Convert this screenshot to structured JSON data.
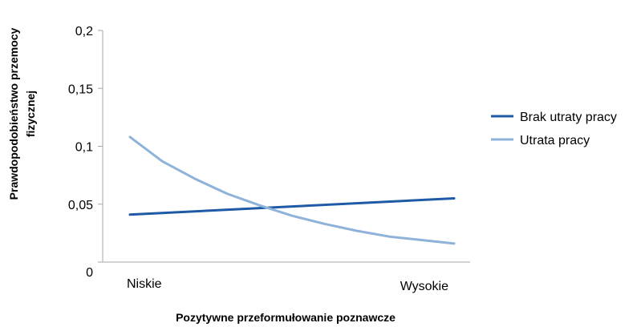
{
  "chart_data": {
    "type": "line",
    "categories": [
      "Niskie",
      "Wysokie"
    ],
    "x": [
      0,
      1
    ],
    "series": [
      {
        "name": "Brak utraty pracy",
        "color": "#1f5aa6",
        "x": [
          0,
          1
        ],
        "values": [
          0.041,
          0.055
        ]
      },
      {
        "name": "Utrata pracy",
        "color": "#8eb2d9",
        "x": [
          0,
          0.1,
          0.2,
          0.3,
          0.4,
          0.5,
          0.6,
          0.7,
          0.8,
          0.9,
          1
        ],
        "values": [
          0.108,
          0.087,
          0.072,
          0.059,
          0.049,
          0.04,
          0.033,
          0.027,
          0.022,
          0.019,
          0.016
        ]
      }
    ],
    "xlabel": "Pozytywne przeformułowanie poznawcze",
    "ylabel_lines": [
      "Prawdopodobieństwo przemocy",
      "fizycznej"
    ],
    "ylim": [
      0,
      0.2
    ],
    "yticks": [
      0,
      0.05,
      0.1,
      0.15,
      0.2
    ],
    "ytick_labels": [
      "0",
      "0,05",
      "0,1",
      "0,15",
      "0,2"
    ],
    "grid": false,
    "legend_position": "right"
  }
}
